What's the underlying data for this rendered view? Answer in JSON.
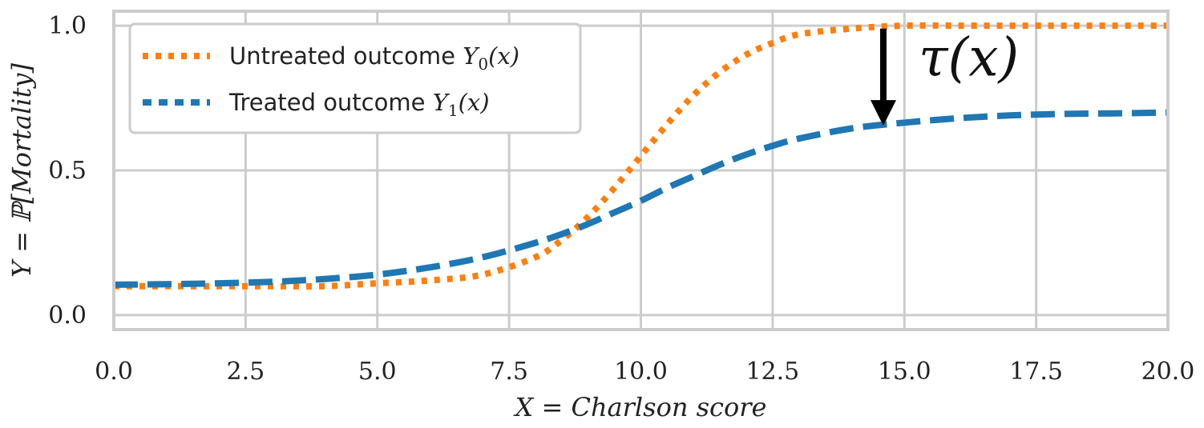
{
  "chart_data": {
    "type": "line",
    "xlabel": "X = Charlson score",
    "ylabel": "Y = ℙ[Mortality]",
    "xlim": [
      0,
      20
    ],
    "ylim": [
      -0.05,
      1.05
    ],
    "x_ticks": [
      "0.0",
      "2.5",
      "5.0",
      "7.5",
      "10.0",
      "12.5",
      "15.0",
      "17.5",
      "20.0"
    ],
    "y_ticks": [
      "0.0",
      "0.5",
      "1.0"
    ],
    "grid": true,
    "legend_position": "top-left",
    "x": [
      0,
      1,
      2,
      3,
      4,
      5,
      6,
      7,
      8,
      8.5,
      9,
      9.5,
      10,
      10.5,
      11,
      11.5,
      12,
      12.5,
      13,
      14,
      15,
      16,
      17,
      18,
      19,
      20
    ],
    "series": [
      {
        "name": "Untreated outcome Y_0(x)",
        "label_text": "Untreated outcome ",
        "label_math": "Y",
        "label_sub": "0",
        "label_tail": "(x)",
        "color": "#ff7f0e",
        "style": "dotted",
        "values": [
          0.1,
          0.1,
          0.1,
          0.1,
          0.1,
          0.11,
          0.12,
          0.14,
          0.2,
          0.26,
          0.34,
          0.44,
          0.55,
          0.66,
          0.76,
          0.84,
          0.9,
          0.94,
          0.97,
          0.99,
          1.0,
          1.0,
          1.0,
          1.0,
          1.0,
          1.0
        ]
      },
      {
        "name": "Treated outcome Y_1(x)",
        "label_text": "Treated outcome ",
        "label_math": "Y",
        "label_sub": "1",
        "label_tail": "(x)",
        "color": "#1f77b4",
        "style": "dashed",
        "values": [
          0.105,
          0.107,
          0.11,
          0.115,
          0.125,
          0.14,
          0.165,
          0.2,
          0.25,
          0.28,
          0.315,
          0.355,
          0.395,
          0.44,
          0.48,
          0.52,
          0.555,
          0.585,
          0.61,
          0.645,
          0.665,
          0.68,
          0.69,
          0.695,
          0.697,
          0.7
        ]
      }
    ],
    "annotation": {
      "text": "τ(x)",
      "arrow_x": 14.6,
      "arrow_from_y": 0.99,
      "arrow_to_y": 0.66
    }
  }
}
